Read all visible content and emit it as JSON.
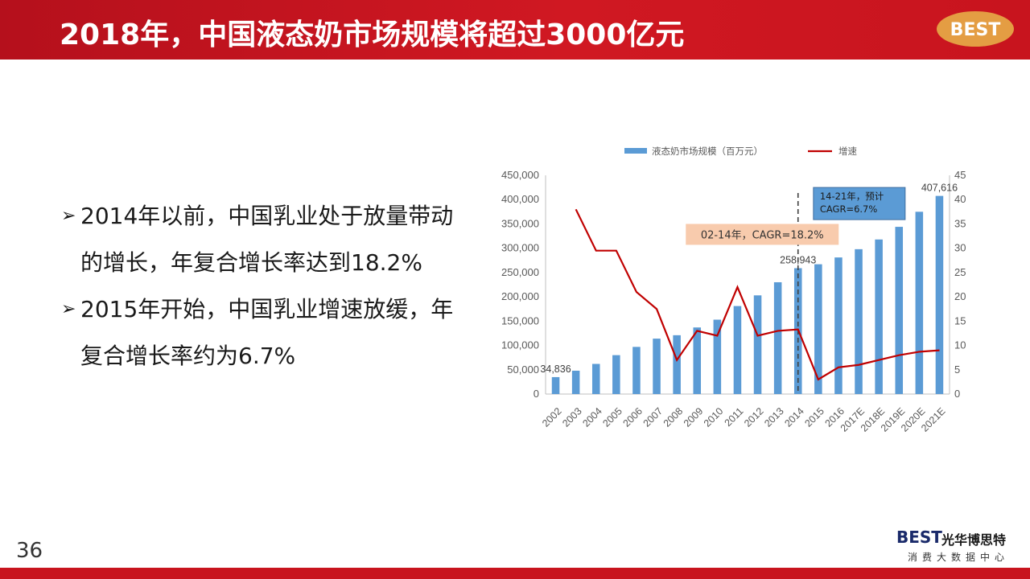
{
  "header": {
    "title": "2018年，中国液态奶市场规模将超过3000亿元",
    "badge_text": "BEST"
  },
  "bullets": [
    {
      "text": "2014年以前，中国乳业处于放量带动的增长，年复合增长率达到18.2%"
    },
    {
      "text": "2015年开始，中国乳业增速放缓，年复合增长率约为6.7%"
    }
  ],
  "page_number": "36",
  "footer": {
    "brand_en": "BEST",
    "brand_cn": "光华博思特",
    "tagline": "消费大数据中心"
  },
  "colors": {
    "header_red": "#c8141e",
    "bar_blue": "#5b9bd5",
    "line_red": "#c00000",
    "callout_orange": "#f8cbad",
    "callout_blue": "#5b9bd5"
  },
  "chart_data": {
    "type": "bar+line",
    "categories": [
      "2002",
      "2003",
      "2004",
      "2005",
      "2006",
      "2007",
      "2008",
      "2009",
      "2010",
      "2011",
      "2012",
      "2013",
      "2014",
      "2015",
      "2016",
      "2017E",
      "2018E",
      "2019E",
      "2020E",
      "2021E"
    ],
    "series": [
      {
        "name": "液态奶市场规模（百万元）",
        "type": "bar",
        "values": [
          34836,
          48000,
          62000,
          80000,
          97000,
          114000,
          121000,
          137000,
          153000,
          181000,
          203000,
          230000,
          258943,
          267000,
          281000,
          298000,
          318000,
          344000,
          375000,
          407616
        ]
      },
      {
        "name": "增速",
        "type": "line",
        "values": [
          null,
          38,
          29.5,
          29.5,
          21,
          17.5,
          7,
          13,
          12,
          22,
          12,
          13,
          13.3,
          3,
          5.5,
          6,
          7,
          8,
          8.7,
          9
        ]
      }
    ],
    "y_left": {
      "ylim": [
        0,
        450000
      ],
      "ticks": [
        "0",
        "50,000",
        "100,000",
        "150,000",
        "200,000",
        "250,000",
        "300,000",
        "350,000",
        "400,000",
        "450,000"
      ]
    },
    "y_right": {
      "ylim": [
        0,
        45
      ],
      "ticks": [
        "0",
        "5",
        "10",
        "15",
        "20",
        "25",
        "30",
        "35",
        "40",
        "45"
      ]
    },
    "data_labels": [
      {
        "index": 0,
        "text": "34,836"
      },
      {
        "index": 12,
        "text": "258,943"
      },
      {
        "index": 19,
        "text": "407,616"
      }
    ],
    "annotations": [
      {
        "text": "02-14年，CAGR=18.2%"
      },
      {
        "text": "14-21年，预计\nCAGR=6.7%"
      }
    ],
    "divider_after_category": "2014",
    "legend_position": "top",
    "grid": false
  }
}
